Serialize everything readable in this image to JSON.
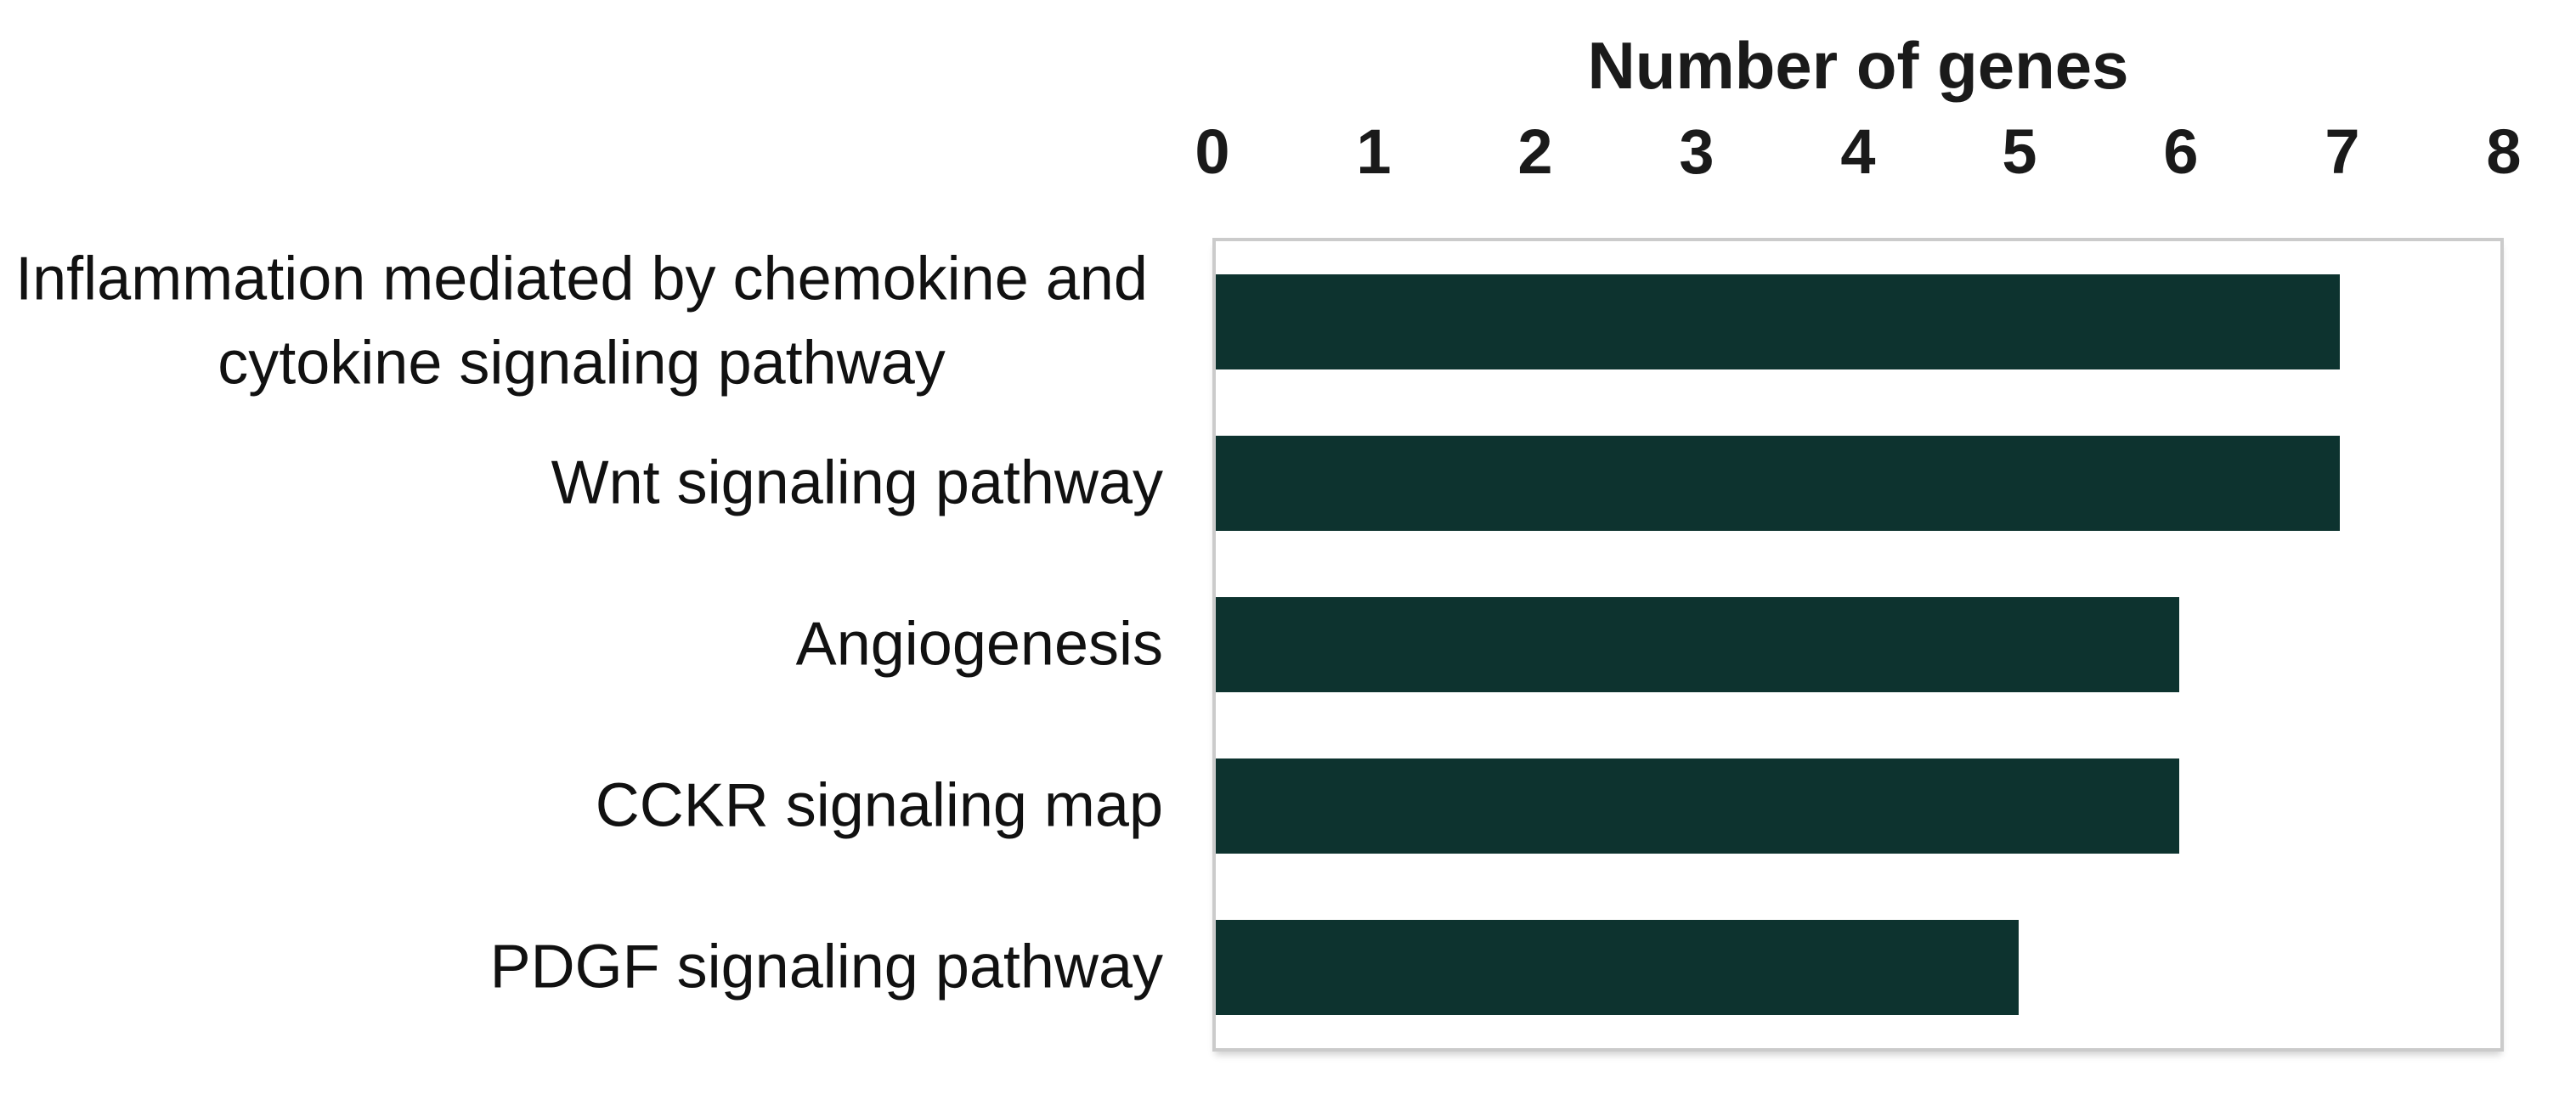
{
  "chart_data": {
    "type": "bar",
    "orientation": "horizontal",
    "title": "Number of genes",
    "xlabel": "Number of genes",
    "ylabel": "",
    "categories": [
      "Inflammation mediated by chemokine and cytokine signaling pathway",
      "Wnt signaling pathway",
      "Angiogenesis",
      "CCKR signaling map",
      "PDGF signaling pathway"
    ],
    "values": [
      7,
      7,
      6,
      6,
      5
    ],
    "xlim": [
      0,
      8
    ],
    "xticks": [
      0,
      1,
      2,
      3,
      4,
      5,
      6,
      7,
      8
    ],
    "grid": false,
    "legend": "none",
    "colors": {
      "bar": "#0d332f",
      "plot_border": "#cbcbcb",
      "background": "#ffffff",
      "text": "#1a1a1a"
    }
  }
}
